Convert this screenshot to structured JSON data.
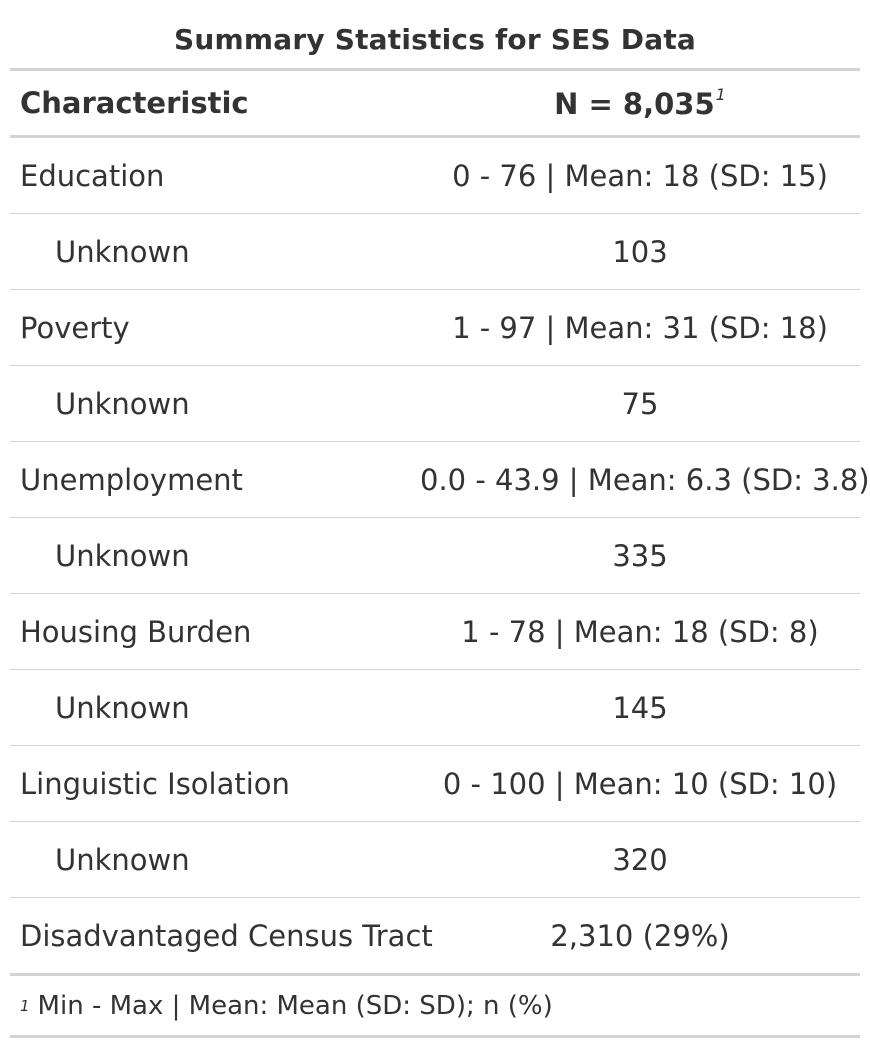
{
  "table": {
    "title": "Summary Statistics for SES Data",
    "header": {
      "characteristic": "Characteristic",
      "n_label": "N = 8,035",
      "n_footnote_mark": "1"
    },
    "rows": [
      {
        "label": "Education",
        "value": "0 - 76 | Mean: 18 (SD: 15)",
        "indent": false
      },
      {
        "label": "Unknown",
        "value": "103",
        "indent": true
      },
      {
        "label": "Poverty",
        "value": "1 - 97 | Mean: 31 (SD: 18)",
        "indent": false
      },
      {
        "label": "Unknown",
        "value": "75",
        "indent": true
      },
      {
        "label": "Unemployment",
        "value": "0.0 - 43.9 | Mean: 6.3 (SD: 3.8)",
        "indent": false
      },
      {
        "label": "Unknown",
        "value": "335",
        "indent": true
      },
      {
        "label": "Housing Burden",
        "value": "1 - 78 | Mean: 18 (SD: 8)",
        "indent": false
      },
      {
        "label": "Unknown",
        "value": "145",
        "indent": true
      },
      {
        "label": "Linguistic Isolation",
        "value": "0 - 100 | Mean: 10 (SD: 10)",
        "indent": false
      },
      {
        "label": "Unknown",
        "value": "320",
        "indent": true
      },
      {
        "label": "Disadvantaged Census Tract",
        "value": "2,310 (29%)",
        "indent": false
      }
    ],
    "footnote": {
      "mark": "1",
      "text": "Min - Max | Mean: Mean (SD: SD); n (%)"
    }
  }
}
